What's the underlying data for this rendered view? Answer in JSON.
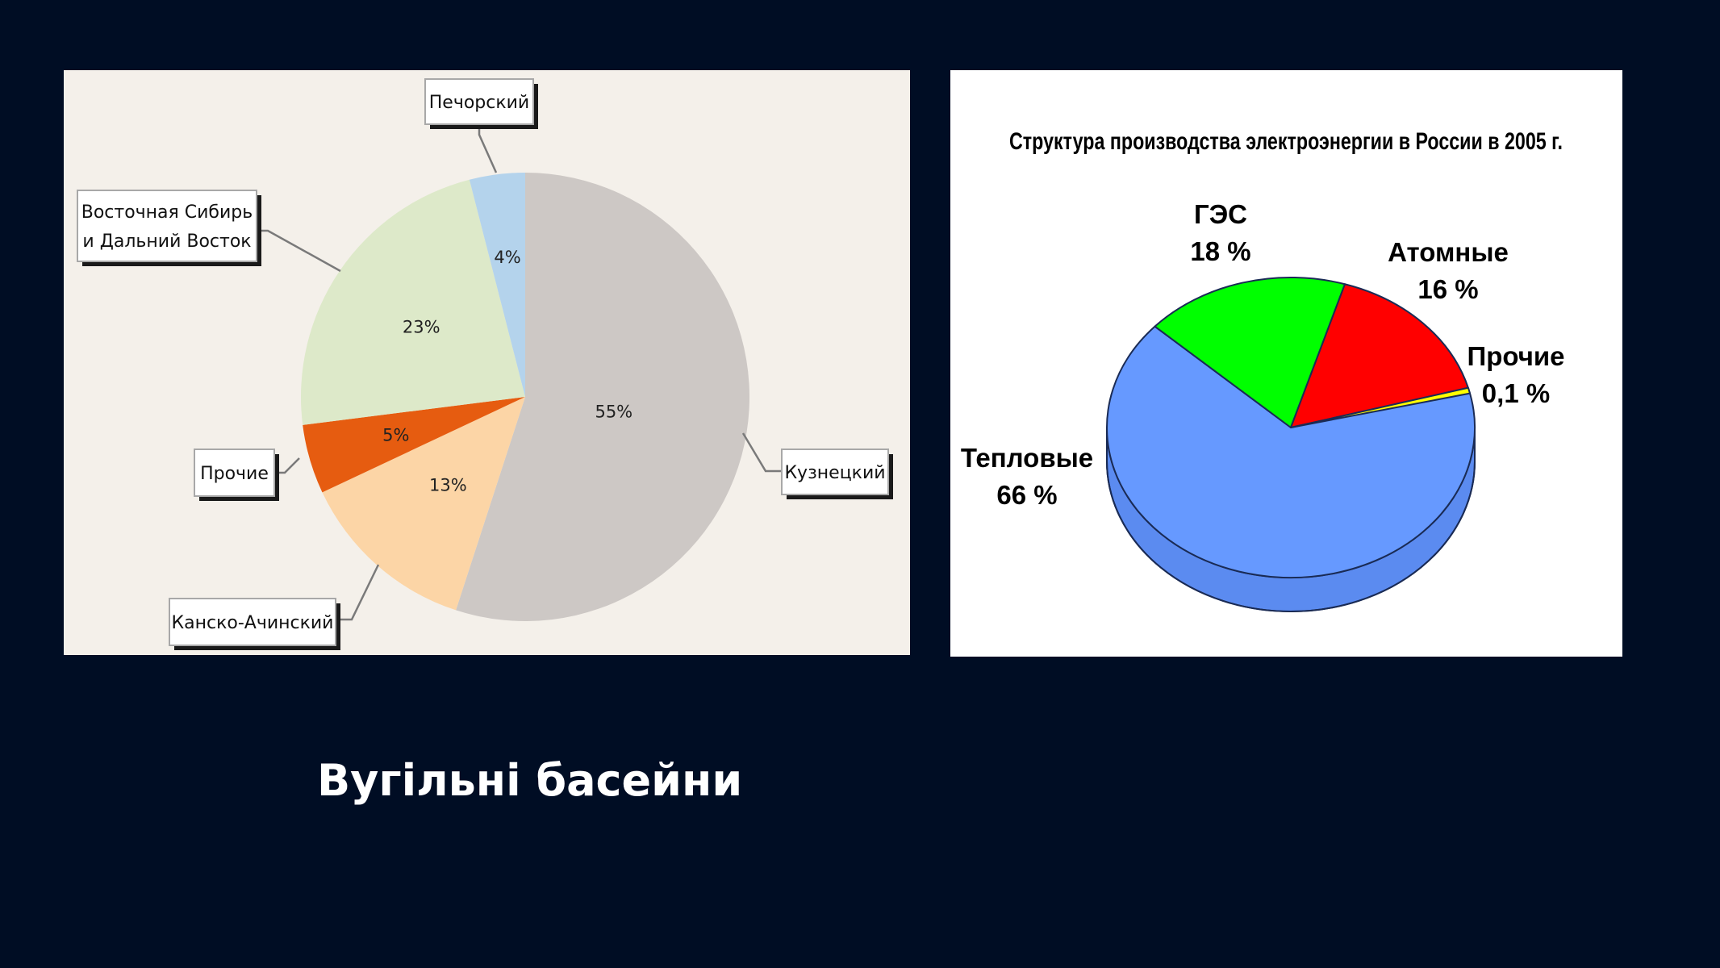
{
  "slide": {
    "caption": "Вугільні басейни",
    "background": "#000d24"
  },
  "chart_data": [
    {
      "type": "pie",
      "title": "",
      "slices": [
        {
          "label": "Кузнецкий",
          "value": 55,
          "value_label": "55%",
          "color": "#cdc8c5"
        },
        {
          "label": "Канско-Ачинский",
          "value": 13,
          "value_label": "13%",
          "color": "#fcd5a6"
        },
        {
          "label": "Прочие",
          "value": 5,
          "value_label": "5%",
          "color": "#e65c10"
        },
        {
          "label": "Восточная Сибирь и Дальний Восток",
          "value": 23,
          "value_label": "23%",
          "color": "#dde9c9"
        },
        {
          "label": "Печорский",
          "value": 4,
          "value_label": "4%",
          "color": "#b4d3ec"
        }
      ],
      "background": "#f4f0ea"
    },
    {
      "type": "pie",
      "title": "Структура производства электроэнергии в России в 2005 г.",
      "slices": [
        {
          "label": "Тепловые",
          "value": 66,
          "value_label": "66 %",
          "color": "#6699ff"
        },
        {
          "label": "ГЭС",
          "value": 18,
          "value_label": "18 %",
          "color": "#00ff00"
        },
        {
          "label": "Атомные",
          "value": 16,
          "value_label": "16 %",
          "color": "#ff0000"
        },
        {
          "label": "Прочие",
          "value": 0.1,
          "value_label": "0,1 %",
          "color": "#ffff00"
        }
      ],
      "background": "#ffffff"
    }
  ]
}
